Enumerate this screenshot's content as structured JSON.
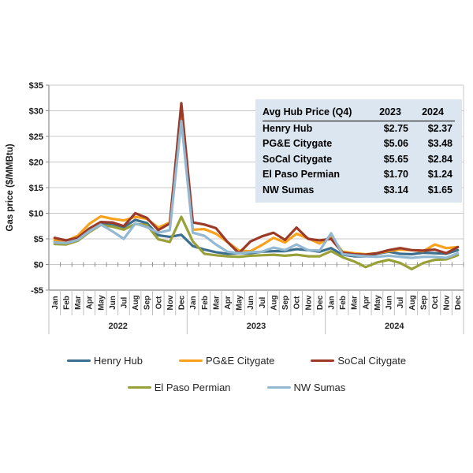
{
  "chart_data": {
    "type": "line",
    "title": "",
    "xlabel": "",
    "ylabel": "Gas price ($/MMBtu)",
    "ylim": [
      -5,
      35
    ],
    "ytick_step": 5,
    "yticks": [
      "$35",
      "$30",
      "$25",
      "$20",
      "$15",
      "$10",
      "$5",
      "$0",
      "-$5"
    ],
    "grid": true,
    "legend_position": "bottom",
    "months": [
      "Jan",
      "Feb",
      "Mar",
      "Apr",
      "May",
      "Jun",
      "Jul",
      "Aug",
      "Sep",
      "Oct",
      "Nov",
      "Dec"
    ],
    "years": [
      "2022",
      "2023",
      "2024"
    ],
    "series": [
      {
        "name": "Henry Hub",
        "color": "#3C6E8F",
        "values": [
          4.4,
          4.3,
          4.9,
          6.6,
          8.1,
          7.9,
          7.3,
          8.7,
          8.1,
          5.7,
          5.4,
          5.8,
          3.6,
          2.9,
          2.4,
          2.1,
          2.2,
          2.2,
          2.5,
          2.6,
          2.6,
          3.0,
          2.8,
          2.5,
          3.2,
          1.9,
          1.6,
          1.6,
          2.1,
          2.5,
          2.1,
          2.0,
          2.3,
          2.2,
          2.1,
          2.8
        ]
      },
      {
        "name": "PG&E Citygate",
        "color": "#F9A11B",
        "values": [
          4.8,
          4.6,
          5.6,
          7.9,
          9.4,
          8.9,
          8.6,
          9.3,
          8.9,
          7.2,
          8.2,
          30.0,
          6.8,
          6.9,
          6.0,
          4.4,
          2.7,
          2.6,
          3.8,
          5.2,
          4.3,
          6.0,
          5.1,
          4.1,
          5.5,
          2.5,
          2.2,
          2.0,
          2.2,
          2.6,
          2.9,
          2.8,
          2.6,
          3.9,
          3.2,
          3.4
        ]
      },
      {
        "name": "SoCal Citygate",
        "color": "#9C3A28",
        "values": [
          5.2,
          4.7,
          5.2,
          7.0,
          8.3,
          8.2,
          7.5,
          10.0,
          9.1,
          6.7,
          8.0,
          31.5,
          8.2,
          7.8,
          7.1,
          4.4,
          2.2,
          4.5,
          5.5,
          6.2,
          4.8,
          7.2,
          5.0,
          4.7,
          5.0,
          2.3,
          2.0,
          1.9,
          2.2,
          2.8,
          3.2,
          2.8,
          2.7,
          2.9,
          2.2,
          3.4
        ]
      },
      {
        "name": "El Paso Permian",
        "color": "#99A038",
        "values": [
          4.0,
          3.9,
          4.6,
          6.3,
          7.7,
          7.4,
          6.8,
          7.9,
          7.7,
          4.9,
          4.4,
          9.3,
          4.5,
          2.1,
          1.8,
          1.6,
          1.5,
          1.7,
          1.8,
          1.9,
          1.7,
          1.9,
          1.6,
          1.6,
          2.6,
          1.4,
          0.6,
          -0.5,
          0.4,
          0.9,
          0.3,
          -0.9,
          0.3,
          0.9,
          1.0,
          1.8
        ]
      },
      {
        "name": "NW Sumas",
        "color": "#93B8D2",
        "values": [
          4.3,
          4.2,
          4.8,
          6.5,
          7.8,
          6.5,
          5.0,
          8.0,
          7.3,
          6.2,
          6.7,
          28.0,
          6.2,
          5.6,
          3.9,
          2.5,
          2.2,
          2.4,
          2.5,
          3.3,
          2.8,
          3.9,
          2.8,
          2.7,
          6.1,
          2.0,
          1.8,
          1.6,
          1.5,
          1.7,
          1.5,
          1.3,
          1.5,
          1.5,
          1.3,
          2.2
        ]
      }
    ]
  },
  "table": {
    "background": "#DCE6F1",
    "header": {
      "label": "Avg Hub Price (Q4)",
      "col_2023": "2023",
      "col_2024": "2024"
    },
    "rows": [
      {
        "hub": "Henry Hub",
        "v2023": "$2.75",
        "v2024": "$2.37"
      },
      {
        "hub": "PG&E Citygate",
        "v2023": "$5.06",
        "v2024": "$3.48"
      },
      {
        "hub": "SoCal Citygate",
        "v2023": "$5.65",
        "v2024": "$2.84"
      },
      {
        "hub": "El Paso Permian",
        "v2023": "$1.70",
        "v2024": "$1.24"
      },
      {
        "hub": "NW Sumas",
        "v2023": "$3.14",
        "v2024": "$1.65"
      }
    ]
  }
}
